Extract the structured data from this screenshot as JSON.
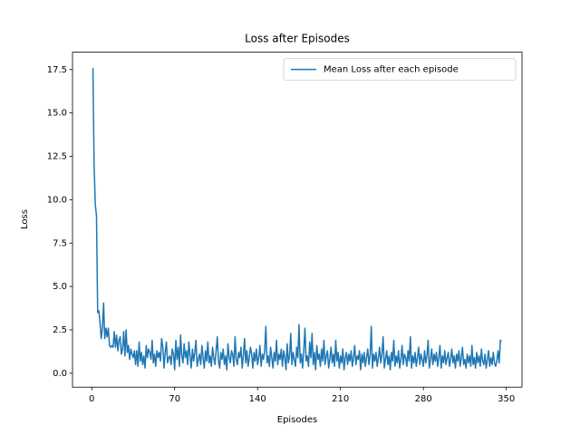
{
  "chart_data": {
    "type": "line",
    "title": "Loss after Episodes",
    "x_label": "Episodes",
    "y_label": "Loss",
    "legend": "upper right",
    "x": [
      1,
      2,
      3,
      4,
      5,
      6,
      7,
      8,
      9,
      10,
      11,
      12,
      13,
      14,
      15,
      16,
      17,
      18,
      19,
      20,
      21,
      22,
      23,
      24,
      25,
      26,
      27,
      28,
      29,
      30,
      31,
      32,
      33,
      34,
      35,
      36,
      37,
      38,
      39,
      40,
      41,
      42,
      43,
      44,
      45,
      46,
      47,
      48,
      49,
      50,
      51,
      52,
      53,
      54,
      55,
      56,
      57,
      58,
      59,
      60,
      61,
      62,
      63,
      64,
      65,
      66,
      67,
      68,
      69,
      70,
      71,
      72,
      73,
      74,
      75,
      76,
      77,
      78,
      79,
      80,
      81,
      82,
      83,
      84,
      85,
      86,
      87,
      88,
      89,
      90,
      91,
      92,
      93,
      94,
      95,
      96,
      97,
      98,
      99,
      100,
      101,
      102,
      103,
      104,
      105,
      106,
      107,
      108,
      109,
      110,
      111,
      112,
      113,
      114,
      115,
      116,
      117,
      118,
      119,
      120,
      121,
      122,
      123,
      124,
      125,
      126,
      127,
      128,
      129,
      130,
      131,
      132,
      133,
      134,
      135,
      136,
      137,
      138,
      139,
      140,
      141,
      142,
      143,
      144,
      145,
      146,
      147,
      148,
      149,
      150,
      151,
      152,
      153,
      154,
      155,
      156,
      157,
      158,
      159,
      160,
      161,
      162,
      163,
      164,
      165,
      166,
      167,
      168,
      169,
      170,
      171,
      172,
      173,
      174,
      175,
      176,
      177,
      178,
      179,
      180,
      181,
      182,
      183,
      184,
      185,
      186,
      187,
      188,
      189,
      190,
      191,
      192,
      193,
      194,
      195,
      196,
      197,
      198,
      199,
      200,
      201,
      202,
      203,
      204,
      205,
      206,
      207,
      208,
      209,
      210,
      211,
      212,
      213,
      214,
      215,
      216,
      217,
      218,
      219,
      220,
      221,
      222,
      223,
      224,
      225,
      226,
      227,
      228,
      229,
      230,
      231,
      232,
      233,
      234,
      235,
      236,
      237,
      238,
      239,
      240,
      241,
      242,
      243,
      244,
      245,
      246,
      247,
      248,
      249,
      250,
      251,
      252,
      253,
      254,
      255,
      256,
      257,
      258,
      259,
      260,
      261,
      262,
      263,
      264,
      265,
      266,
      267,
      268,
      269,
      270,
      271,
      272,
      273,
      274,
      275,
      276,
      277,
      278,
      279,
      280,
      281,
      282,
      283,
      284,
      285,
      286,
      287,
      288,
      289,
      290,
      291,
      292,
      293,
      294,
      295,
      296,
      297,
      298,
      299,
      300,
      301,
      302,
      303,
      304,
      305,
      306,
      307,
      308,
      309,
      310,
      311,
      312,
      313,
      314,
      315,
      316,
      317,
      318,
      319,
      320,
      321,
      322,
      323,
      324,
      325,
      326,
      327,
      328,
      329,
      330,
      331,
      332,
      333,
      334,
      335,
      336,
      337,
      338,
      339,
      340,
      341,
      342,
      343,
      344,
      345,
      346
    ],
    "series": [
      {
        "name": "Mean Loss after each episode",
        "color": "#1f77b4",
        "values": [
          17.6,
          12.0,
          9.7,
          9.1,
          3.5,
          3.6,
          2.9,
          2.0,
          2.6,
          4.05,
          2.0,
          2.6,
          2.1,
          2.6,
          1.6,
          1.5,
          1.6,
          1.5,
          2.4,
          1.5,
          2.2,
          1.3,
          1.9,
          2.1,
          1.1,
          1.4,
          2.4,
          1.0,
          2.5,
          1.2,
          1.6,
          0.8,
          1.4,
          1.1,
          0.9,
          1.3,
          0.5,
          1.3,
          0.4,
          1.8,
          0.7,
          1.2,
          0.5,
          1.0,
          0.3,
          1.6,
          0.9,
          1.4,
          1.2,
          0.8,
          1.9,
          0.6,
          1.1,
          0.4,
          1.3,
          0.9,
          1.2,
          0.7,
          2.0,
          1.5,
          0.3,
          1.2,
          1.8,
          0.6,
          0.9,
          1.0,
          0.5,
          1.4,
          1.1,
          0.2,
          1.9,
          0.8,
          1.5,
          0.4,
          2.2,
          1.0,
          0.6,
          1.7,
          0.9,
          1.3,
          0.5,
          1.8,
          1.0,
          0.3,
          1.4,
          0.7,
          1.2,
          1.9,
          0.4,
          0.8,
          1.1,
          0.5,
          1.6,
          0.9,
          0.3,
          1.3,
          0.7,
          1.8,
          0.6,
          1.0,
          0.4,
          1.5,
          0.9,
          0.5,
          1.3,
          2.1,
          0.7,
          0.3,
          1.2,
          0.8,
          1.4,
          0.5,
          1.0,
          0.2,
          1.7,
          0.9,
          0.6,
          1.3,
          1.1,
          0.4,
          2.1,
          0.8,
          0.5,
          1.2,
          0.9,
          1.5,
          0.3,
          1.0,
          2.0,
          0.6,
          1.3,
          0.4,
          0.9,
          1.5,
          1.1,
          0.3,
          1.2,
          0.7,
          1.4,
          0.5,
          0.9,
          1.6,
          0.4,
          1.1,
          0.8,
          1.3,
          2.7,
          0.6,
          1.0,
          0.4,
          1.5,
          0.9,
          0.3,
          1.2,
          0.7,
          1.9,
          0.5,
          1.1,
          0.8,
          1.4,
          0.4,
          1.3,
          0.9,
          0.2,
          1.7,
          0.6,
          1.0,
          2.3,
          0.5,
          1.2,
          0.8,
          0.4,
          1.5,
          0.9,
          2.8,
          0.6,
          1.1,
          0.3,
          1.3,
          2.6,
          0.7,
          1.0,
          0.4,
          1.8,
          0.9,
          2.3,
          0.5,
          1.2,
          0.2,
          1.6,
          0.8,
          1.1,
          0.4,
          1.4,
          0.7,
          1.9,
          0.5,
          1.0,
          1.3,
          0.3,
          0.8,
          1.5,
          0.6,
          1.1,
          0.4,
          1.9,
          0.7,
          1.2,
          0.3,
          1.0,
          0.6,
          1.4,
          0.2,
          0.9,
          1.2,
          0.5,
          1.1,
          0.7,
          1.3,
          0.4,
          0.9,
          1.6,
          0.5,
          1.0,
          0.8,
          1.3,
          0.2,
          1.1,
          0.6,
          1.2,
          0.4,
          0.9,
          1.4,
          0.5,
          1.0,
          2.7,
          0.3,
          1.1,
          0.7,
          1.2,
          0.4,
          0.9,
          1.5,
          0.6,
          1.1,
          2.1,
          0.3,
          0.8,
          1.3,
          0.5,
          1.0,
          0.2,
          1.2,
          0.7,
          1.9,
          0.4,
          1.0,
          0.6,
          1.3,
          0.3,
          0.8,
          1.6,
          0.5,
          1.1,
          0.9,
          0.4,
          1.3,
          0.7,
          2.1,
          0.3,
          1.0,
          0.6,
          1.2,
          0.4,
          0.9,
          1.5,
          0.5,
          1.1,
          0.8,
          0.4,
          1.3,
          0.6,
          1.0,
          1.9,
          0.3,
          0.8,
          1.4,
          0.5,
          1.1,
          0.7,
          1.2,
          0.4,
          0.9,
          1.6,
          0.3,
          1.0,
          0.6,
          1.3,
          0.5,
          0.9,
          1.2,
          0.4,
          0.8,
          1.4,
          0.6,
          1.0,
          0.3,
          1.1,
          0.7,
          1.3,
          0.4,
          0.9,
          1.5,
          0.5,
          0.8,
          0.3,
          1.1,
          0.6,
          1.0,
          0.4,
          1.6,
          0.5,
          0.9,
          0.3,
          1.2,
          0.6,
          1.0,
          0.4,
          1.4,
          0.7,
          0.5,
          1.1,
          0.3,
          0.8,
          1.3,
          0.4,
          0.9,
          0.5,
          1.2,
          0.6,
          0.4,
          0.7,
          1.3,
          0.6,
          1.9,
          1.85
        ]
      }
    ],
    "xlim": [
      -16.25,
      363.25
    ],
    "xticks": [
      0,
      70,
      140,
      210,
      280,
      350
    ],
    "ylim": [
      -0.8,
      18.5
    ],
    "yticks": [
      {
        "value": 0,
        "label": "0.0"
      },
      {
        "value": 2.5,
        "label": "2.5"
      },
      {
        "value": 5,
        "label": "5.0"
      },
      {
        "value": 7.5,
        "label": "7.5"
      },
      {
        "value": 10,
        "label": "10.0"
      },
      {
        "value": 12.5,
        "label": "12.5"
      },
      {
        "value": 15,
        "label": "15.0"
      },
      {
        "value": 17.5,
        "label": "17.5"
      }
    ]
  }
}
